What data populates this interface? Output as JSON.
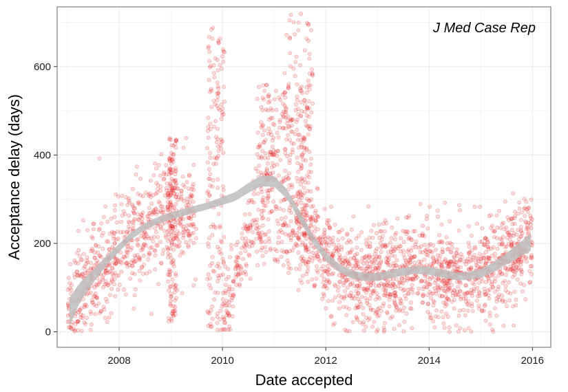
{
  "chart_data": {
    "type": "scatter",
    "title": "",
    "annotation": "J Med Case Rep",
    "xlabel": "Date accepted",
    "ylabel": "Acceptance delay (days)",
    "x_ticks": [
      "2008",
      "2010",
      "2012",
      "2014",
      "2016"
    ],
    "y_ticks": [
      "0",
      "200",
      "400",
      "600"
    ],
    "xlim": [
      "2006-10-20",
      "2016-05-10"
    ],
    "ylim": [
      -35,
      735
    ],
    "grid": true,
    "legend": "none",
    "colors": {
      "points": "#e41a1c",
      "smooth_band": "#bdbdbd",
      "grid": "#ececec",
      "panel_border": "#7f7f7f"
    },
    "smooth": {
      "method": "loess-like trend with confidence band",
      "x": [
        "2007-01-15",
        "2007-04-01",
        "2007-07-01",
        "2007-10-01",
        "2008-01-01",
        "2008-04-01",
        "2008-07-01",
        "2008-10-01",
        "2009-01-01",
        "2009-04-01",
        "2009-07-01",
        "2009-10-01",
        "2010-01-01",
        "2010-04-01",
        "2010-07-01",
        "2010-10-01",
        "2011-01-01",
        "2011-04-01",
        "2011-07-01",
        "2011-10-01",
        "2012-01-01",
        "2012-04-01",
        "2012-07-01",
        "2012-10-01",
        "2013-01-01",
        "2013-04-01",
        "2013-07-01",
        "2013-10-01",
        "2014-01-01",
        "2014-04-01",
        "2014-07-01",
        "2014-10-01",
        "2015-01-01",
        "2015-04-01",
        "2015-07-01",
        "2015-10-01",
        "2015-12-20"
      ],
      "y": [
        45,
        90,
        125,
        160,
        190,
        218,
        238,
        252,
        262,
        270,
        278,
        286,
        296,
        306,
        325,
        341,
        340,
        312,
        262,
        210,
        170,
        145,
        130,
        124,
        124,
        130,
        136,
        140,
        138,
        132,
        126,
        126,
        132,
        146,
        165,
        185,
        203
      ],
      "band_halfwidth": [
        32,
        22,
        15,
        11,
        9,
        8,
        8,
        8,
        8,
        8,
        8,
        8,
        9,
        10,
        11,
        12,
        12,
        11,
        11,
        10,
        10,
        9,
        9,
        9,
        9,
        9,
        9,
        9,
        9,
        9,
        9,
        9,
        10,
        11,
        13,
        16,
        20
      ]
    },
    "point_clusters": [
      {
        "x_start": "2007-01-01",
        "x_end": "2009-06-30",
        "trend": "smooth",
        "spread": 55,
        "count": 700
      },
      {
        "x_start": "2008-12-10",
        "x_end": "2009-02-10",
        "trend": "fixed",
        "y_min": 20,
        "y_max": 440,
        "count": 130
      },
      {
        "x_start": "2009-09-15",
        "x_end": "2010-01-15",
        "trend": "fixed",
        "y_min": 0,
        "y_max": 690,
        "count": 170
      },
      {
        "x_start": "2010-01-01",
        "x_end": "2010-12-31",
        "trend": "ramp",
        "spread": 45,
        "count": 180
      },
      {
        "x_start": "2010-09-01",
        "x_end": "2011-09-30",
        "trend": "fixed",
        "y_min": 150,
        "y_max": 560,
        "count": 320
      },
      {
        "x_start": "2011-03-01",
        "x_end": "2011-10-15",
        "trend": "fixed",
        "y_min": 90,
        "y_max": 720,
        "count": 110
      },
      {
        "x_start": "2011-06-01",
        "x_end": "2015-12-31",
        "trend": "smooth",
        "spread": 50,
        "count": 1500
      }
    ]
  }
}
